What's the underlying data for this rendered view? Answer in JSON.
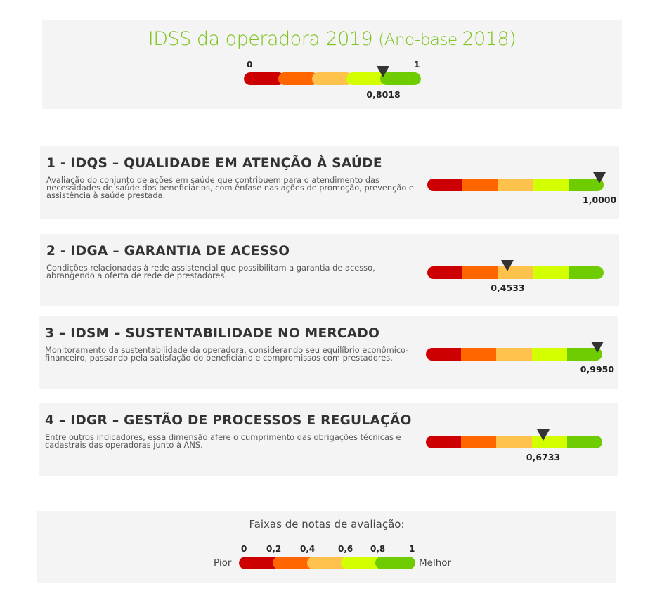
{
  "header": {
    "title_main": "IDSS da operadora 2019",
    "title_paren": "(Ano-base",
    "title_year": "2018)",
    "scale_min": "0",
    "scale_max": "1",
    "score_label": "0,8018",
    "score": 0.8018
  },
  "indicators": [
    {
      "title": "1 - IDQS – QUALIDADE EM ATENÇÃO À SAÚDE",
      "description": "Avaliação do conjunto de ações em saúde que contribuem para o atendimento das necessidades de saúde dos beneficiários, com ênfase nas ações de promoção, prevenção e assistência à saúde prestada.",
      "score_label": "1,0000",
      "score": 1.0
    },
    {
      "title": "2 - IDGA – GARANTIA DE ACESSO",
      "description": "Condições relacionadas à rede assistencial que possibilitam a garantia de acesso, abrangendo a oferta de rede de prestadores.",
      "score_label": "0,4533",
      "score": 0.4533
    },
    {
      "title": "3 – IDSM – SUSTENTABILIDADE NO MERCADO",
      "description": "Monitoramento da sustentabilidade da operadora, considerando seu equilíbrio econômico-financeiro, passando pela satisfação do beneficiário e compromissos com prestadores.",
      "score_label": "0,9950",
      "score": 0.995
    },
    {
      "title": "4 – IDGR – GESTÃO DE PROCESSOS E REGULAÇÃO",
      "description": "Entre outros indicadores, essa dimensão afere o cumprimento das obrigações técnicas e cadastrais das operadoras junto à ANS.",
      "score_label": "0,6733",
      "score": 0.6733
    }
  ],
  "legend": {
    "title": "Faixas de notas de avaliação:",
    "ticks": [
      "0",
      "0,2",
      "0,4",
      "0,6",
      "0,8",
      "1"
    ],
    "worst_label": "Pior",
    "best_label": "Melhor"
  },
  "colors": {
    "title_green": "#7dc41f",
    "band_colors": [
      "#cc0000",
      "#ff6600",
      "#ffc34d",
      "#d4ff00",
      "#6fcc00"
    ],
    "marker": "#333333",
    "panel_bg": "#f4f4f4"
  }
}
